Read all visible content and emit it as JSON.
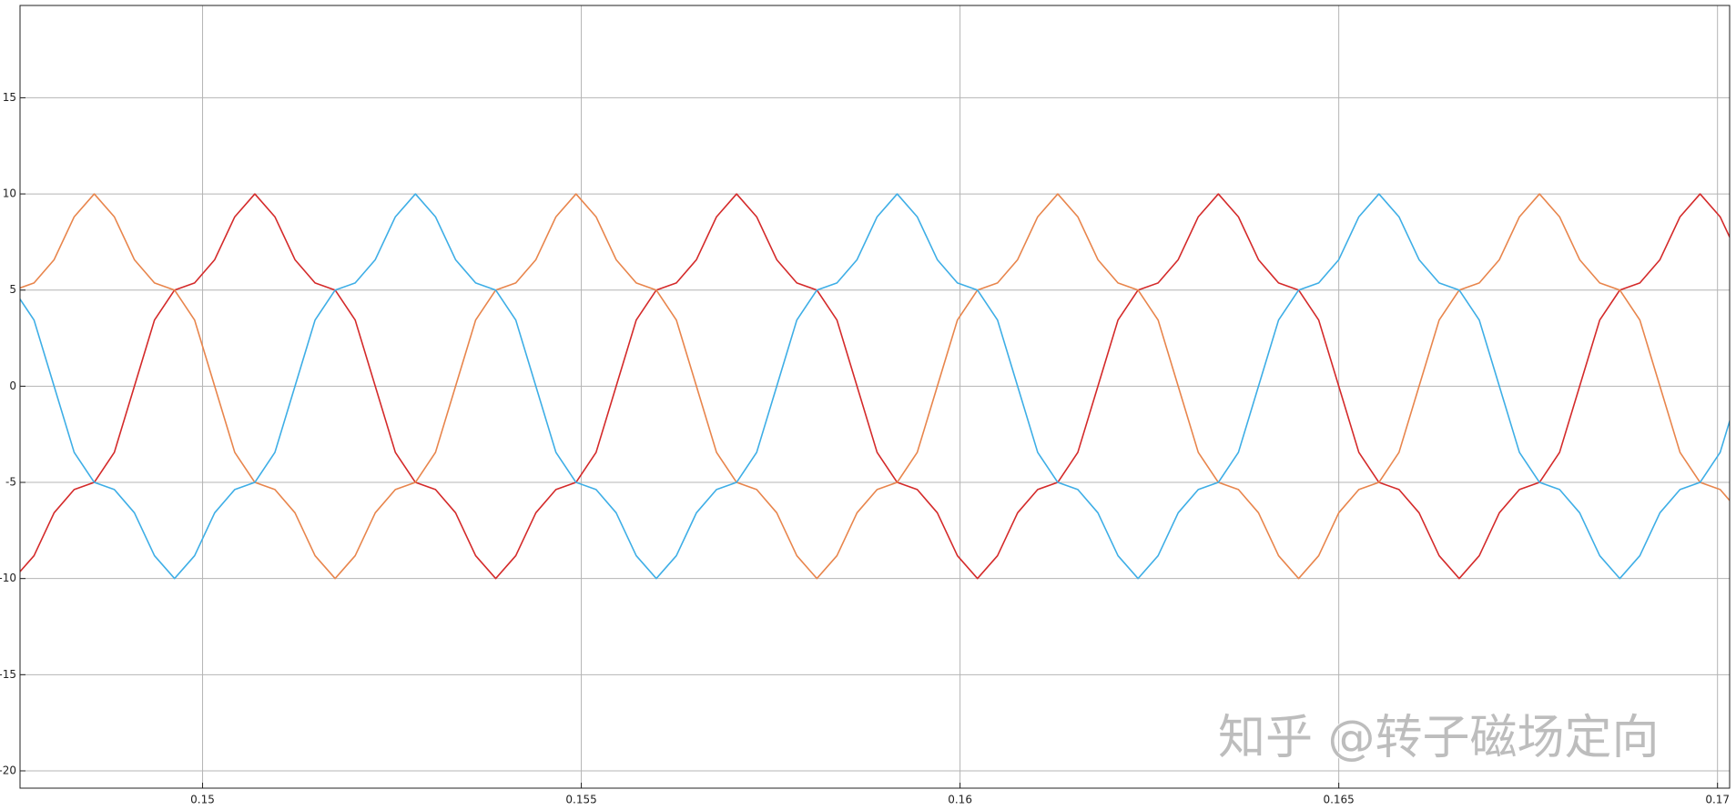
{
  "chart_data": {
    "type": "line",
    "watermark": "知乎 @转子磁场定向",
    "x": [
      0.14751,
      0.147775,
      0.14804,
      0.148305,
      0.14857,
      0.148835,
      0.1491,
      0.149365,
      0.14963,
      0.149895,
      0.15016,
      0.150425,
      0.15069,
      0.150955,
      0.15122,
      0.151485,
      0.15175,
      0.152015,
      0.15228,
      0.152545,
      0.15281,
      0.153075,
      0.15334,
      0.153605,
      0.15387,
      0.154135,
      0.1544,
      0.154665,
      0.15493,
      0.155195,
      0.15546,
      0.155725,
      0.15599,
      0.156255,
      0.15652,
      0.156785,
      0.15705,
      0.157315,
      0.15758,
      0.157845,
      0.15811,
      0.158375,
      0.15864,
      0.158905,
      0.15917,
      0.159435,
      0.1597,
      0.159965,
      0.16023,
      0.160495,
      0.16076,
      0.161025,
      0.16129,
      0.161555,
      0.16182,
      0.162085,
      0.16235,
      0.162615,
      0.16288,
      0.163145,
      0.16341,
      0.163675,
      0.16394,
      0.164205,
      0.16447,
      0.164735,
      0.165,
      0.165265,
      0.16553,
      0.165795,
      0.16606,
      0.166325,
      0.16659,
      0.166855,
      0.16712,
      0.167385,
      0.16765,
      0.167915,
      0.16818,
      0.168445,
      0.16871,
      0.168975,
      0.16924,
      0.169505,
      0.16977,
      0.170035,
      0.1703
    ],
    "series": [
      {
        "color": "#d42a2a",
        "values": [
          -10,
          -8.81,
          -6.58,
          -5.37,
          -5,
          -3.44,
          0,
          3.44,
          5,
          5.37,
          6.58,
          8.81,
          10,
          8.81,
          6.58,
          5.37,
          5,
          3.44,
          0,
          -3.44,
          -5,
          -5.37,
          -6.58,
          -8.81,
          -10,
          -8.81,
          -6.58,
          -5.37,
          -5,
          -3.44,
          0,
          3.44,
          5,
          5.37,
          6.58,
          8.81,
          10,
          8.81,
          6.58,
          5.37,
          5,
          3.44,
          0,
          -3.44,
          -5,
          -5.37,
          -6.58,
          -8.81,
          -10,
          -8.81,
          -6.58,
          -5.37,
          -5,
          -3.44,
          0,
          3.44,
          5,
          5.37,
          6.58,
          8.81,
          10,
          8.81,
          6.58,
          5.37,
          5,
          3.44,
          0,
          -3.44,
          -5,
          -5.37,
          -6.58,
          -8.81,
          -10,
          -8.81,
          -6.58,
          -5.37,
          -5,
          -3.44,
          0,
          3.44,
          5,
          5.37,
          6.58,
          8.81,
          10,
          8.81,
          6.58
        ]
      },
      {
        "color": "#e8854c",
        "values": [
          5,
          5.37,
          6.58,
          8.81,
          10,
          8.81,
          6.58,
          5.37,
          5,
          3.44,
          0,
          -3.44,
          -5,
          -5.37,
          -6.58,
          -8.81,
          -10,
          -8.81,
          -6.58,
          -5.37,
          -5,
          -3.44,
          0,
          3.44,
          5,
          5.37,
          6.58,
          8.81,
          10,
          8.81,
          6.58,
          5.37,
          5,
          3.44,
          0,
          -3.44,
          -5,
          -5.37,
          -6.58,
          -8.81,
          -10,
          -8.81,
          -6.58,
          -5.37,
          -5,
          -3.44,
          0,
          3.44,
          5,
          5.37,
          6.58,
          8.81,
          10,
          8.81,
          6.58,
          5.37,
          5,
          3.44,
          0,
          -3.44,
          -5,
          -5.37,
          -6.58,
          -8.81,
          -10,
          -8.81,
          -6.58,
          -5.37,
          -5,
          -3.44,
          0,
          3.44,
          5,
          5.37,
          6.58,
          8.81,
          10,
          8.81,
          6.58,
          5.37,
          5,
          3.44,
          0,
          -3.44,
          -5,
          -5.37,
          -6.58
        ]
      },
      {
        "color": "#3eaee6",
        "values": [
          5,
          3.44,
          0,
          -3.44,
          -5,
          -5.37,
          -6.58,
          -8.81,
          -10,
          -8.81,
          -6.58,
          -5.37,
          -5,
          -3.44,
          0,
          3.44,
          5,
          5.37,
          6.58,
          8.81,
          10,
          8.81,
          6.58,
          5.37,
          5,
          3.44,
          0,
          -3.44,
          -5,
          -5.37,
          -6.58,
          -8.81,
          -10,
          -8.81,
          -6.58,
          -5.37,
          -5,
          -3.44,
          0,
          3.44,
          5,
          5.37,
          6.58,
          8.81,
          10,
          8.81,
          6.58,
          5.37,
          5,
          3.44,
          0,
          -3.44,
          -5,
          -5.37,
          -6.58,
          -8.81,
          -10,
          -8.81,
          -6.58,
          -5.37,
          -5,
          -3.44,
          0,
          3.44,
          5,
          5.37,
          6.58,
          8.81,
          10,
          8.81,
          6.58,
          5.37,
          5,
          3.44,
          0,
          -3.44,
          -5,
          -5.37,
          -6.58,
          -8.81,
          -10,
          -8.81,
          -6.58,
          -5.37,
          -5,
          -3.44,
          0
        ]
      }
    ],
    "xlim": [
      0.14759,
      0.17016
    ],
    "ylim": [
      -20.9,
      19.8
    ],
    "xticks": [
      0.15,
      0.155,
      0.16,
      0.165,
      0.17
    ],
    "yticks": [
      -20,
      -15,
      -10,
      -5,
      0,
      5,
      10,
      15
    ],
    "grid": true
  }
}
